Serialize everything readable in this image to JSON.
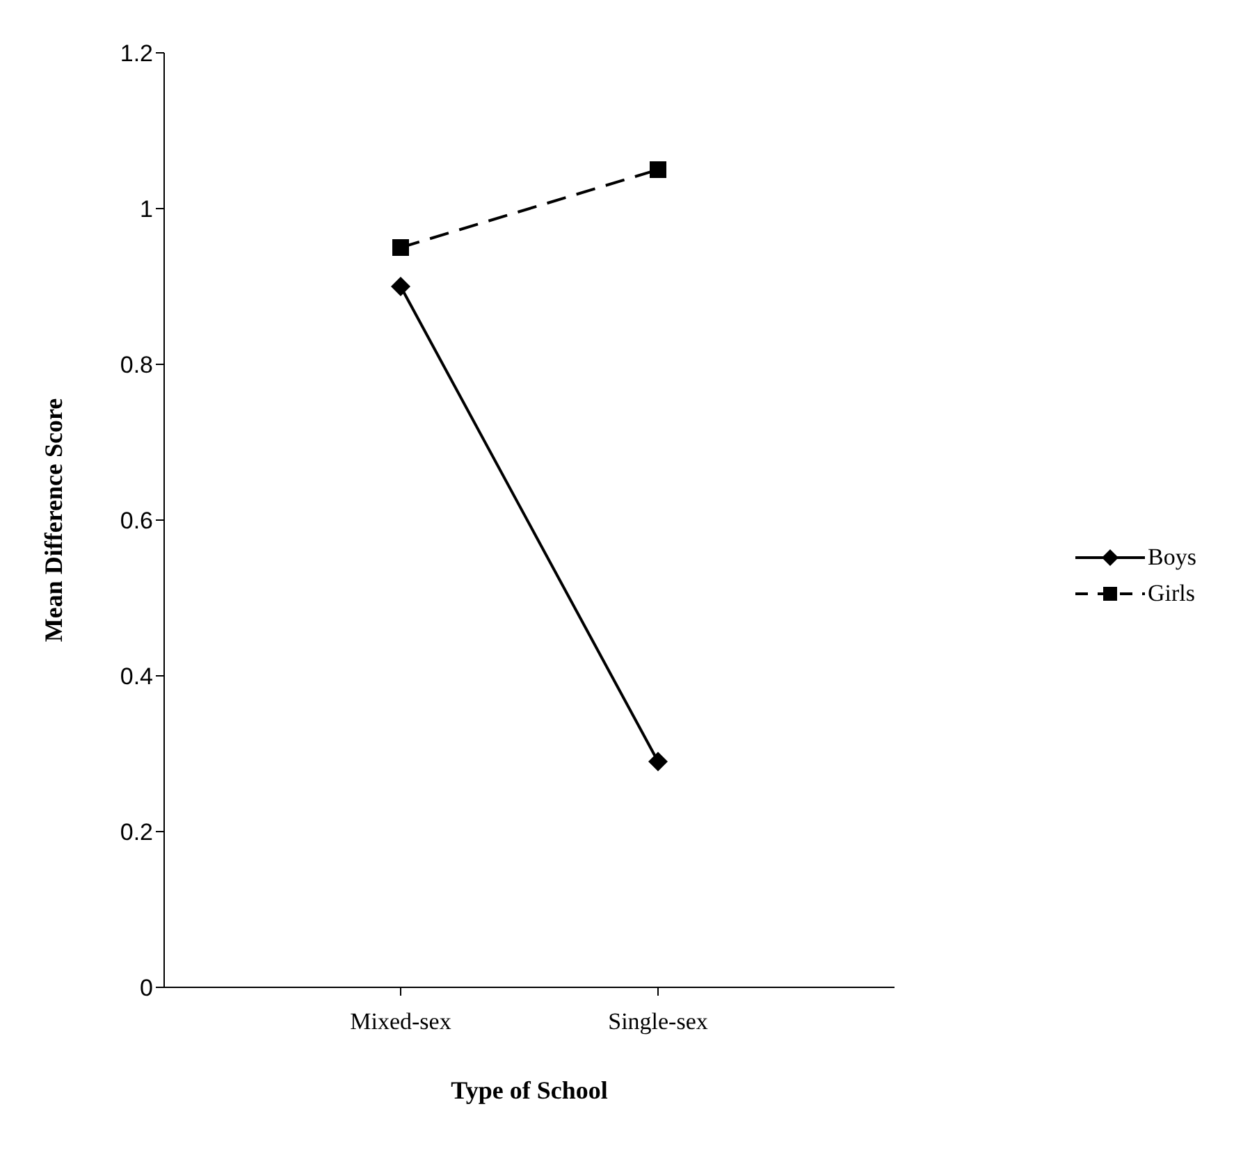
{
  "chart_data": {
    "type": "line",
    "xlabel": "Type of School",
    "ylabel": "Mean Difference Score",
    "categories": [
      "Mixed-sex",
      "Single-sex"
    ],
    "series": [
      {
        "name": "Boys",
        "color": "#000000",
        "values": [
          0.9,
          0.29
        ],
        "marker": "diamond",
        "line_style": "solid"
      },
      {
        "name": "Girls",
        "color": "#000000",
        "values": [
          0.95,
          1.05
        ],
        "marker": "square",
        "line_style": "dashed"
      }
    ],
    "ylim": [
      0,
      1.2
    ],
    "yticks": [
      0,
      0.2,
      0.4,
      0.6,
      0.8,
      1,
      1.2
    ],
    "grid": false,
    "legend": "right"
  }
}
